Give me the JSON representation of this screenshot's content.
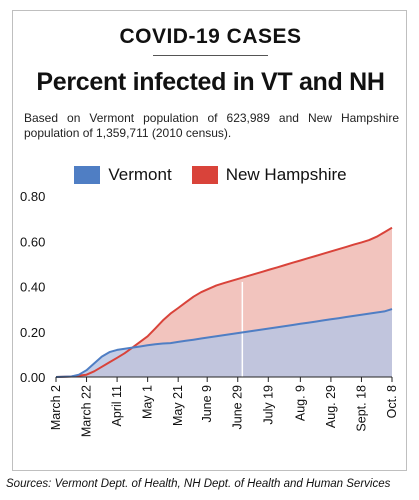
{
  "header": {
    "kicker": "COVID-19 CASES",
    "title": "Percent infected in VT and NH",
    "subtitle": "Based on Vermont population of 623,989 and New Hampshire population of 1,359,711 (2010 census)."
  },
  "source": "Sources: Vermont Dept. of Health, NH Dept. of Health and Human Services",
  "chart_data": {
    "type": "area",
    "title": "Percent infected in VT and NH",
    "legend_position": "top",
    "grid": false,
    "ylim": [
      0,
      0.8
    ],
    "yticks": [
      "0.00",
      "0.20",
      "0.40",
      "0.60",
      "0.80"
    ],
    "xlim": [
      0,
      220
    ],
    "xticks": [
      {
        "label": "March 2",
        "x": 0
      },
      {
        "label": "March 22",
        "x": 20
      },
      {
        "label": "April 11",
        "x": 40
      },
      {
        "label": "May 1",
        "x": 60
      },
      {
        "label": "May 21",
        "x": 80
      },
      {
        "label": "June 9",
        "x": 99
      },
      {
        "label": "June 29",
        "x": 119
      },
      {
        "label": "July 19",
        "x": 139
      },
      {
        "label": "Aug. 9",
        "x": 160
      },
      {
        "label": "Aug. 29",
        "x": 180
      },
      {
        "label": "Sept. 18",
        "x": 200
      },
      {
        "label": "Oct. 8",
        "x": 220
      }
    ],
    "series": [
      {
        "name": "New Hampshire",
        "color": "#d9433a",
        "fill": "#f2c4be",
        "x": [
          0,
          10,
          20,
          25,
          30,
          35,
          40,
          45,
          50,
          55,
          60,
          65,
          70,
          75,
          80,
          85,
          90,
          95,
          100,
          105,
          110,
          115,
          120,
          125,
          130,
          135,
          140,
          145,
          150,
          155,
          160,
          165,
          170,
          175,
          180,
          185,
          190,
          195,
          200,
          205,
          210,
          215,
          220
        ],
        "y": [
          0,
          0.002,
          0.01,
          0.025,
          0.045,
          0.065,
          0.085,
          0.105,
          0.13,
          0.155,
          0.18,
          0.215,
          0.25,
          0.28,
          0.305,
          0.33,
          0.355,
          0.375,
          0.39,
          0.405,
          0.415,
          0.425,
          0.435,
          0.445,
          0.455,
          0.465,
          0.475,
          0.485,
          0.495,
          0.505,
          0.515,
          0.525,
          0.535,
          0.545,
          0.555,
          0.565,
          0.575,
          0.585,
          0.595,
          0.605,
          0.62,
          0.64,
          0.66
        ]
      },
      {
        "name": "Vermont",
        "color": "#4f7ec4",
        "fill": "#b8c5e3",
        "x": [
          0,
          10,
          15,
          20,
          25,
          30,
          35,
          40,
          45,
          50,
          55,
          60,
          65,
          70,
          75,
          80,
          85,
          90,
          95,
          100,
          105,
          110,
          115,
          120,
          125,
          130,
          135,
          140,
          145,
          150,
          155,
          160,
          165,
          170,
          175,
          180,
          185,
          190,
          195,
          200,
          205,
          210,
          215,
          220
        ],
        "y": [
          0,
          0.002,
          0.01,
          0.03,
          0.06,
          0.09,
          0.11,
          0.12,
          0.125,
          0.13,
          0.135,
          0.14,
          0.145,
          0.148,
          0.15,
          0.155,
          0.16,
          0.165,
          0.17,
          0.175,
          0.18,
          0.185,
          0.19,
          0.195,
          0.2,
          0.205,
          0.21,
          0.215,
          0.22,
          0.225,
          0.23,
          0.235,
          0.24,
          0.245,
          0.25,
          0.255,
          0.26,
          0.265,
          0.27,
          0.275,
          0.28,
          0.285,
          0.29,
          0.3
        ]
      }
    ]
  }
}
